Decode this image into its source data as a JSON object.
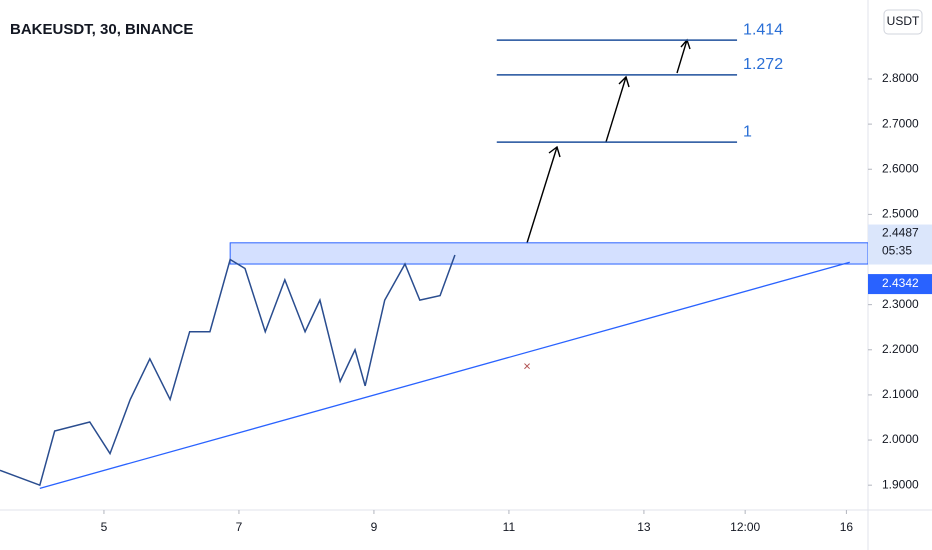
{
  "chart_data": {
    "type": "line",
    "title": "BAKEUSDT, 30, BINANCE",
    "currency_button": "USDT",
    "x": [
      3.46,
      4.05,
      4.27,
      4.79,
      5.09,
      5.39,
      5.68,
      5.98,
      6.27,
      6.57,
      6.87,
      7.09,
      7.39,
      7.68,
      7.98,
      8.2,
      8.5,
      8.72,
      8.87,
      9.16,
      9.46,
      9.68,
      9.98,
      10.2
    ],
    "values": [
      1.933,
      1.9,
      2.02,
      2.04,
      1.97,
      2.09,
      2.18,
      2.09,
      2.24,
      2.24,
      2.4,
      2.38,
      2.24,
      2.355,
      2.24,
      2.31,
      2.13,
      2.2,
      2.12,
      2.31,
      2.39,
      2.31,
      2.32,
      2.41
    ],
    "color": "#2a4d8f",
    "xlim": [
      3.46,
      16.32
    ],
    "ylim": [
      1.845,
      2.975
    ],
    "xticks": [
      5,
      7,
      9,
      11,
      13,
      {
        "value": 14.5,
        "label": "12:00"
      },
      16
    ],
    "yticks": [
      {
        "value": 1.9,
        "label": "1.9000"
      },
      {
        "value": 2.0,
        "label": "2.0000"
      },
      {
        "value": 2.1,
        "label": "2.1000"
      },
      {
        "value": 2.2,
        "label": "2.2000"
      },
      {
        "value": 2.3,
        "label": "2.3000"
      },
      {
        "value": 2.4,
        "label": "2.4000"
      },
      {
        "value": 2.5,
        "label": "2.5000"
      },
      {
        "value": 2.6,
        "label": "2.6000"
      },
      {
        "value": 2.7,
        "label": "2.7000"
      },
      {
        "value": 2.8,
        "label": "2.8000"
      }
    ],
    "fib_levels": [
      {
        "value": 2.66,
        "label": "1"
      },
      {
        "value": 2.809,
        "label": "1.272"
      },
      {
        "value": 2.886,
        "label": "1.414"
      }
    ],
    "fib_x": [
      10.82,
      14.38
    ],
    "zone": [
      2.39,
      2.437
    ],
    "zone_x": [
      6.87,
      16.32
    ],
    "trendline_x": [
      4.05,
      16.05
    ],
    "trendline_y": [
      1.893,
      2.394
    ],
    "last_price": 2.4487,
    "countdown": "05:35",
    "marker_price": 2.4342
  }
}
